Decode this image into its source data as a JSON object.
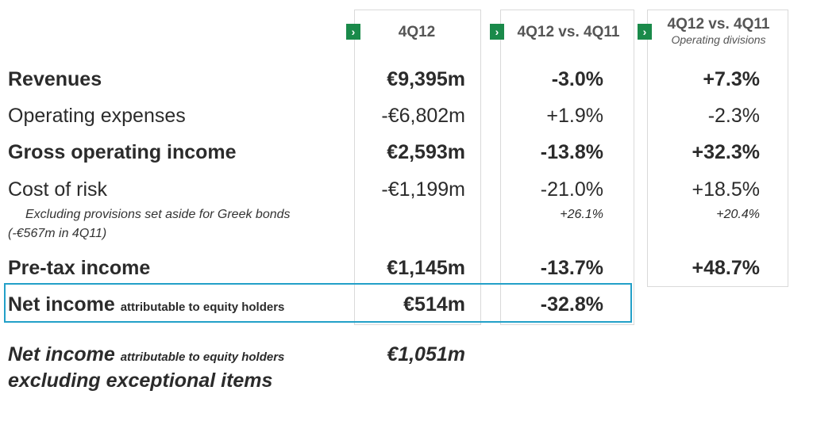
{
  "headers": {
    "col1": {
      "badge": "›",
      "title": "4Q12"
    },
    "col2": {
      "badge": "›",
      "title": "4Q12 vs. 4Q11"
    },
    "col3": {
      "badge": "›",
      "title": "4Q12 vs. 4Q11",
      "subtitle": "Operating divisions"
    }
  },
  "rows": {
    "revenues": {
      "label": "Revenues",
      "v1": "€9,395m",
      "v2": "-3.0%",
      "v3": "+7.3%"
    },
    "opex": {
      "label": "Operating expenses",
      "v1": "-€6,802m",
      "v2": "+1.9%",
      "v3": "-2.3%"
    },
    "goi": {
      "label": "Gross operating income",
      "v1": "€2,593m",
      "v2": "-13.8%",
      "v3": "+32.3%"
    },
    "cor": {
      "label": "Cost of risk",
      "v1": "-€1,199m",
      "v2": "-21.0%",
      "v3": "+18.5%",
      "note1": "Excluding provisions set aside for Greek bonds",
      "note2": "(-€567m in 4Q11)",
      "v2_sub": "+26.1%",
      "v3_sub": "+20.4%"
    },
    "pti": {
      "label": "Pre-tax income",
      "v1": "€1,145m",
      "v2": "-13.7%",
      "v3": "+48.7%"
    },
    "ni": {
      "label": "Net income",
      "label_small": "attributable to equity holders",
      "v1": "€514m",
      "v2": "-32.8%"
    }
  },
  "footer": {
    "label": "Net income",
    "label_small": "attributable to equity holders",
    "line2": "excluding exceptional items",
    "value": "€1,051m"
  },
  "colors": {
    "badge": "#1a8a4a",
    "highlight": "#23a0c8",
    "border": "#d9d9d9"
  }
}
